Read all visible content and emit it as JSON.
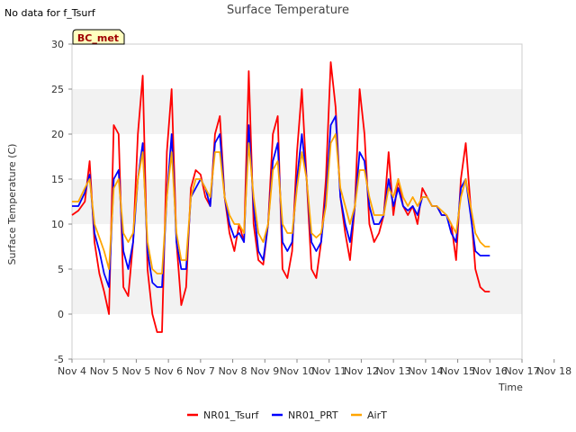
{
  "chart_data": {
    "type": "line",
    "title": "Surface Temperature",
    "note": "No data for f_Tsurf",
    "badge": "BC_met",
    "xlabel": "Time",
    "ylabel": "Surface Temperature (C)",
    "ylim": [
      -5,
      30
    ],
    "yticks": [
      -5,
      0,
      5,
      10,
      15,
      20,
      25,
      30
    ],
    "xlim": [
      4,
      18
    ],
    "x_tick_labels": [
      "Nov 4",
      "Nov 5",
      "Nov 5",
      "Nov 6",
      "Nov 7",
      "Nov 8",
      "Nov 9",
      "Nov 10",
      "Nov 11",
      "Nov 12",
      "Nov 13",
      "Nov 14",
      "Nov 15",
      "Nov 16",
      "Nov 17",
      "Nov 18"
    ],
    "grid": "horizontal alternating bands",
    "legend_position": "bottom-center",
    "series": [
      {
        "name": "NR01_Tsurf",
        "color": "#ff0000",
        "x": [
          4.0,
          4.2,
          4.4,
          4.55,
          4.7,
          4.85,
          5.0,
          5.15,
          5.3,
          5.45,
          5.6,
          5.75,
          5.9,
          6.05,
          6.2,
          6.35,
          6.5,
          6.65,
          6.8,
          6.95,
          7.1,
          7.25,
          7.4,
          7.55,
          7.7,
          7.85,
          8.0,
          8.15,
          8.3,
          8.45,
          8.6,
          8.75,
          8.9,
          9.05,
          9.2,
          9.35,
          9.5,
          9.65,
          9.8,
          9.95,
          10.1,
          10.25,
          10.4,
          10.55,
          10.7,
          10.85,
          11.0,
          11.15,
          11.3,
          11.45,
          11.6,
          11.75,
          11.9,
          12.05,
          12.2,
          12.35,
          12.5,
          12.65,
          12.8,
          12.95,
          13.1,
          13.25,
          13.4,
          13.55,
          13.7,
          13.85,
          14.0,
          14.15,
          14.3,
          14.45,
          14.6,
          14.75,
          14.9,
          15.05,
          15.2,
          15.35,
          15.5,
          15.65,
          15.8,
          15.95,
          16.1,
          16.25,
          16.4,
          16.55,
          16.7,
          16.85,
          17.0
        ],
        "values": [
          11,
          11.5,
          12.5,
          17,
          8,
          4.5,
          2.5,
          0,
          21,
          20,
          3,
          2,
          8,
          20,
          26.5,
          5,
          0,
          -2,
          -2,
          18,
          25,
          8,
          1,
          3,
          14,
          16,
          15.5,
          13,
          12,
          20,
          22,
          13,
          9,
          7,
          10,
          8,
          27,
          10,
          6,
          5.5,
          10,
          20,
          22,
          5,
          4,
          7,
          18,
          25,
          15,
          5,
          4,
          8,
          15,
          28,
          23,
          13,
          9,
          6,
          12,
          25,
          20,
          10,
          8,
          9,
          11,
          18,
          11,
          15,
          12,
          11,
          12,
          10,
          14,
          13,
          12,
          12,
          11,
          11,
          10,
          6,
          15,
          19,
          12,
          5,
          3,
          2.5,
          2.5
        ]
      },
      {
        "name": "NR01_PRT",
        "color": "#0000ff",
        "x": [
          4.0,
          4.2,
          4.4,
          4.55,
          4.7,
          4.85,
          5.0,
          5.15,
          5.3,
          5.45,
          5.6,
          5.75,
          5.9,
          6.05,
          6.2,
          6.35,
          6.5,
          6.65,
          6.8,
          6.95,
          7.1,
          7.25,
          7.4,
          7.55,
          7.7,
          7.85,
          8.0,
          8.15,
          8.3,
          8.45,
          8.6,
          8.75,
          8.9,
          9.05,
          9.2,
          9.35,
          9.5,
          9.65,
          9.8,
          9.95,
          10.1,
          10.25,
          10.4,
          10.55,
          10.7,
          10.85,
          11.0,
          11.15,
          11.3,
          11.45,
          11.6,
          11.75,
          11.9,
          12.05,
          12.2,
          12.35,
          12.5,
          12.65,
          12.8,
          12.95,
          13.1,
          13.25,
          13.4,
          13.55,
          13.7,
          13.85,
          14.0,
          14.15,
          14.3,
          14.45,
          14.6,
          14.75,
          14.9,
          15.05,
          15.2,
          15.35,
          15.5,
          15.65,
          15.8,
          15.95,
          16.1,
          16.25,
          16.4,
          16.55,
          16.7,
          16.85,
          17.0
        ],
        "values": [
          12,
          12,
          13.5,
          15.5,
          9,
          7,
          4.5,
          3,
          15,
          16,
          7,
          5,
          8,
          15,
          19,
          7,
          3.5,
          3,
          3,
          13,
          20,
          8,
          5,
          5,
          13,
          14,
          15,
          14,
          12,
          19,
          20,
          13,
          10,
          8.5,
          9,
          8,
          21,
          12,
          7,
          6,
          10,
          17,
          19,
          8,
          7,
          8,
          15,
          20,
          15,
          8,
          7,
          8,
          13,
          21,
          22,
          13,
          10,
          8,
          12,
          18,
          17,
          12,
          10,
          10,
          11,
          15,
          12,
          14,
          12,
          11.5,
          12,
          11,
          13,
          13,
          12,
          12,
          11,
          11,
          9,
          8,
          14,
          15,
          11,
          7,
          6.5,
          6.5,
          6.5
        ]
      },
      {
        "name": "AirT",
        "color": "#ffa500",
        "x": [
          4.0,
          4.2,
          4.4,
          4.55,
          4.7,
          4.85,
          5.0,
          5.15,
          5.3,
          5.45,
          5.6,
          5.75,
          5.9,
          6.05,
          6.2,
          6.35,
          6.5,
          6.65,
          6.8,
          6.95,
          7.1,
          7.25,
          7.4,
          7.55,
          7.7,
          7.85,
          8.0,
          8.15,
          8.3,
          8.45,
          8.6,
          8.75,
          8.9,
          9.05,
          9.2,
          9.35,
          9.5,
          9.65,
          9.8,
          9.95,
          10.1,
          10.25,
          10.4,
          10.55,
          10.7,
          10.85,
          11.0,
          11.15,
          11.3,
          11.45,
          11.6,
          11.75,
          11.9,
          12.05,
          12.2,
          12.35,
          12.5,
          12.65,
          12.8,
          12.95,
          13.1,
          13.25,
          13.4,
          13.55,
          13.7,
          13.85,
          14.0,
          14.15,
          14.3,
          14.45,
          14.6,
          14.75,
          14.9,
          15.05,
          15.2,
          15.35,
          15.5,
          15.65,
          15.8,
          15.95,
          16.1,
          16.25,
          16.4,
          16.55,
          16.7,
          16.85,
          17.0
        ],
        "values": [
          12.5,
          12.5,
          14,
          15,
          10,
          8.5,
          7,
          5,
          14,
          15,
          9,
          8,
          9,
          15,
          18,
          8,
          5,
          4.5,
          4.5,
          13,
          18,
          9,
          6,
          6,
          13,
          15,
          15,
          14,
          13,
          18,
          18,
          13,
          11,
          10,
          10,
          9,
          19,
          13,
          9,
          8,
          10,
          16,
          17,
          10,
          9,
          9,
          14,
          18,
          15,
          9,
          8.5,
          9,
          12,
          19,
          20,
          14,
          12,
          10,
          12,
          16,
          16,
          13,
          11,
          11,
          11,
          14,
          13,
          15,
          13,
          12,
          13,
          12,
          13,
          13,
          12,
          12,
          11.5,
          11,
          10,
          9,
          13,
          15,
          12,
          9,
          8,
          7.5,
          7.5
        ]
      }
    ]
  }
}
